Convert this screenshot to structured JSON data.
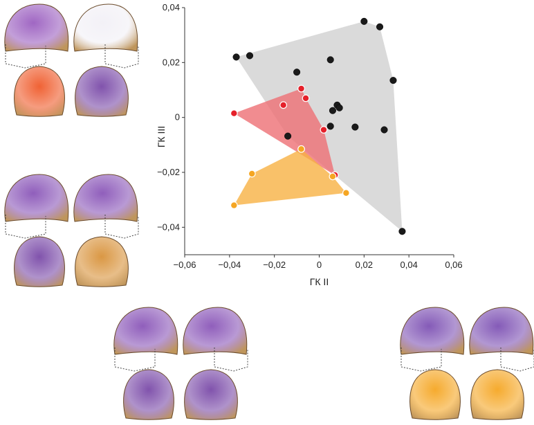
{
  "chart_data": {
    "type": "scatter",
    "title": "",
    "xlabel": "ГК II",
    "ylabel": "ГК III",
    "xlim": [
      -0.06,
      0.06
    ],
    "ylim": [
      -0.05,
      0.04
    ],
    "x_ticks": [
      -0.06,
      -0.04,
      -0.02,
      0,
      0.02,
      0.04,
      0.06
    ],
    "y_ticks": [
      -0.04,
      -0.02,
      0,
      0.02,
      0.04
    ],
    "x_tick_labels": [
      "−0,06",
      "−0,04",
      "−0,02",
      "0",
      "0,02",
      "0,04",
      "0,06"
    ],
    "y_tick_labels": [
      "−0,04",
      "−0,02",
      "0",
      "0,02",
      "0,04"
    ],
    "grid": false,
    "series": [
      {
        "color": "#1a1a1a",
        "hull_color": "#d3d3d3",
        "points": [
          [
            0.02,
            0.035
          ],
          [
            0.027,
            0.033
          ],
          [
            -0.037,
            0.022
          ],
          [
            -0.031,
            0.0225
          ],
          [
            0.005,
            0.021
          ],
          [
            -0.01,
            0.0165
          ],
          [
            0.033,
            0.0135
          ],
          [
            0.008,
            0.0045
          ],
          [
            0.009,
            0.0035
          ],
          [
            0.006,
            0.0025
          ],
          [
            0.005,
            -0.0032
          ],
          [
            0.016,
            -0.0035
          ],
          [
            0.029,
            -0.0045
          ],
          [
            -0.014,
            -0.0068
          ],
          [
            0.037,
            -0.0415
          ]
        ],
        "hull": [
          [
            -0.037,
            0.022
          ],
          [
            0.02,
            0.035
          ],
          [
            0.027,
            0.033
          ],
          [
            0.033,
            0.0135
          ],
          [
            0.037,
            -0.0415
          ],
          [
            -0.014,
            -0.0068
          ]
        ]
      },
      {
        "color": "#e5202a",
        "hull_color": "#ee6f74",
        "points": [
          [
            -0.038,
            0.0015
          ],
          [
            -0.008,
            0.0105
          ],
          [
            -0.006,
            0.007
          ],
          [
            -0.016,
            0.0045
          ],
          [
            0.002,
            -0.0045
          ],
          [
            0.007,
            -0.021
          ]
        ],
        "hull": [
          [
            -0.038,
            0.0015
          ],
          [
            -0.008,
            0.0105
          ],
          [
            -0.006,
            0.007
          ],
          [
            0.002,
            -0.0045
          ],
          [
            0.007,
            -0.021
          ]
        ]
      },
      {
        "color": "#f5a623",
        "hull_color": "#f8b243",
        "points": [
          [
            -0.038,
            -0.032
          ],
          [
            -0.03,
            -0.0205
          ],
          [
            -0.008,
            -0.0115
          ],
          [
            0.006,
            -0.0215
          ],
          [
            0.012,
            -0.0275
          ]
        ],
        "hull": [
          [
            -0.038,
            -0.032
          ],
          [
            -0.03,
            -0.0205
          ],
          [
            -0.008,
            -0.0115
          ],
          [
            0.006,
            -0.0215
          ],
          [
            0.012,
            -0.0275
          ]
        ]
      }
    ],
    "skull_figures": [
      {
        "accent_top": "#9b5fc0",
        "accent_bottom": "#ef5a2a"
      },
      {
        "accent_top": "#8a56b8",
        "accent_bottom": "#7a4aa8"
      },
      {
        "accent_top": "#8a56b8",
        "accent_bottom": "#7a4aa8"
      },
      {
        "accent_top": "#7e52b4",
        "accent_bottom": "#f5a623"
      },
      {
        "accent_top": "#f07a24",
        "accent_bottom": "#7e52b4"
      }
    ]
  }
}
